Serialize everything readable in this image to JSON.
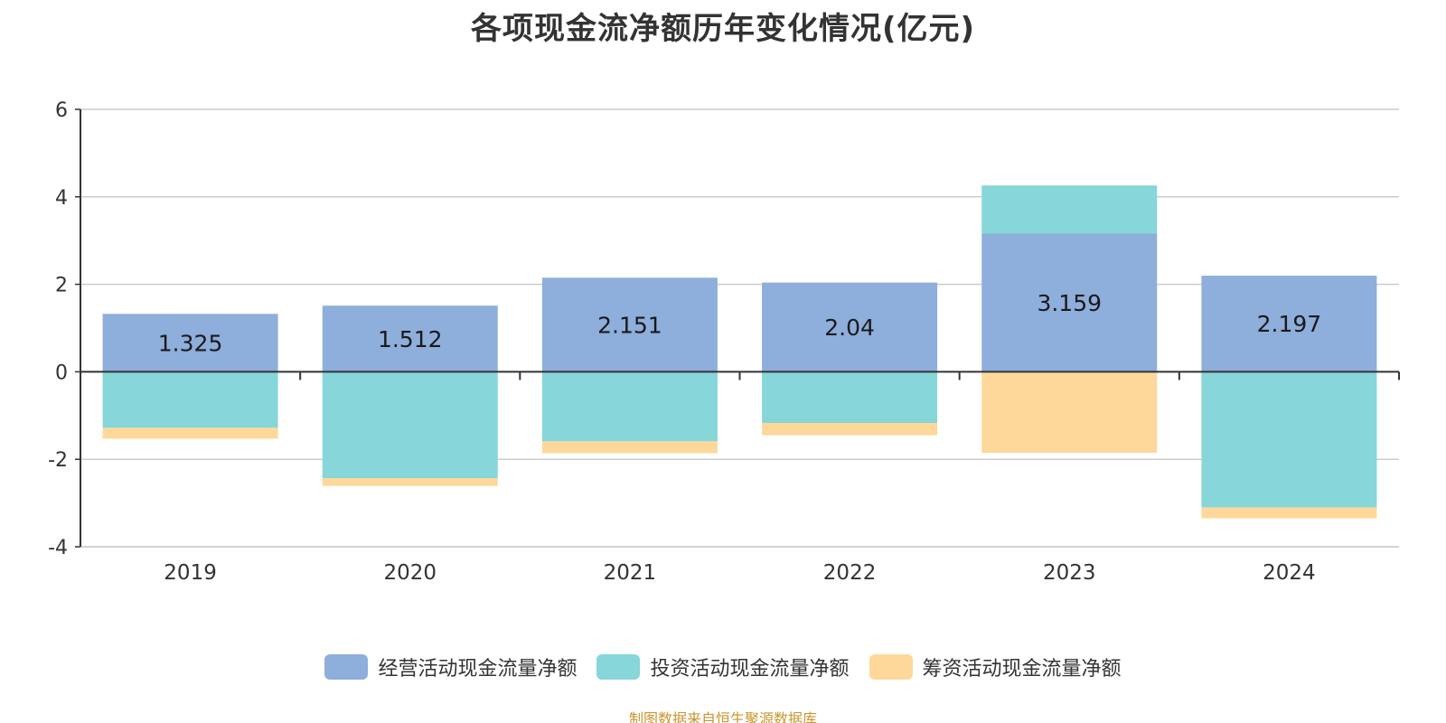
{
  "source_text": "制图数据来自恒生聚源数据库",
  "chart_data": {
    "type": "bar",
    "stacked": true,
    "title": "各项现金流净额历年变化情况(亿元)",
    "categories": [
      "2019",
      "2020",
      "2021",
      "2022",
      "2023",
      "2024"
    ],
    "ylim": [
      -4,
      6
    ],
    "yticks": [
      6,
      4,
      2,
      0,
      -2,
      -4
    ],
    "grid": true,
    "legend_position": "bottom",
    "series": [
      {
        "name": "经营活动现金流量净额",
        "color": "#8eaedb",
        "values": [
          1.325,
          1.512,
          2.151,
          2.04,
          3.159,
          2.197
        ],
        "show_labels": true
      },
      {
        "name": "投资活动现金流量净额",
        "color": "#87d6d9",
        "values": [
          -1.28,
          -2.43,
          -1.59,
          -1.17,
          1.1,
          -3.1
        ],
        "show_labels": false
      },
      {
        "name": "筹资活动现金流量净额",
        "color": "#fdd89a",
        "values": [
          -0.25,
          -0.18,
          -0.27,
          -0.28,
          -1.85,
          -0.25
        ],
        "show_labels": false
      }
    ]
  }
}
